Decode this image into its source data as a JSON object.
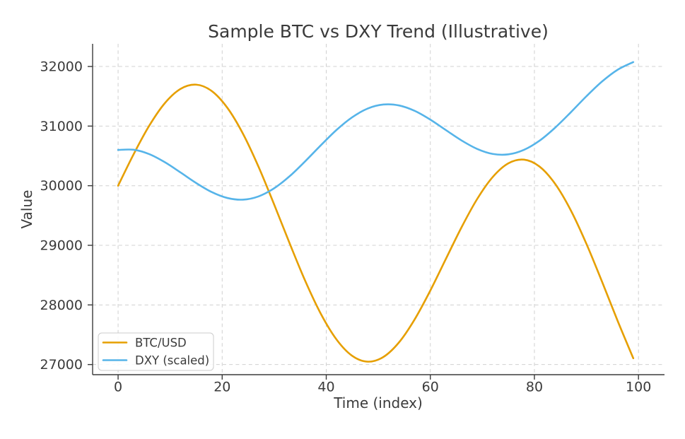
{
  "figure": {
    "background": "#ffffff"
  },
  "style": {
    "axis_color": "#3b3b3b",
    "text_color": "#3b3b3b",
    "grid_color": "#d0d0d0"
  },
  "chart_data": {
    "type": "line",
    "title": "Sample BTC vs DXY Trend (Illustrative)",
    "xlabel": "Time (index)",
    "ylabel": "Value",
    "x_ticks": [
      0,
      20,
      40,
      60,
      80,
      100
    ],
    "y_ticks": [
      27000,
      28000,
      29000,
      30000,
      31000,
      32000
    ],
    "xlim": [
      -4.9,
      105.0
    ],
    "ylim": [
      26830,
      32380
    ],
    "grid": {
      "visible": true,
      "style": "dashed",
      "color": "#d0d0d0"
    },
    "legend": {
      "position": "lower-left",
      "entries": [
        "BTC/USD",
        "DXY (scaled)"
      ]
    },
    "x": [
      0,
      3,
      6,
      9,
      12,
      15,
      18,
      21,
      24,
      27,
      30,
      33,
      36,
      39,
      42,
      45,
      48,
      51,
      54,
      57,
      60,
      63,
      66,
      69,
      72,
      75,
      78,
      81,
      84,
      87,
      90,
      93,
      96,
      99
    ],
    "series": [
      {
        "name": "BTC/USD",
        "color": "#E69F00",
        "values": [
          30000,
          30531,
          31009,
          31387,
          31624,
          31695,
          31588,
          31306,
          30871,
          30315,
          29682,
          29025,
          28395,
          27844,
          27417,
          27145,
          27048,
          27128,
          27374,
          27759,
          28241,
          28774,
          29303,
          29777,
          30147,
          30376,
          30437,
          30320,
          30029,
          29586,
          29024,
          28389,
          27731,
          27105
        ]
      },
      {
        "name": "DXY (scaled)",
        "color": "#56B4E9",
        "values": [
          30600,
          30603,
          30529,
          30393,
          30222,
          30045,
          29893,
          29794,
          29766,
          29821,
          29958,
          30162,
          30414,
          30682,
          30938,
          31149,
          31296,
          31362,
          31346,
          31255,
          31108,
          30932,
          30759,
          30617,
          30533,
          30526,
          30602,
          30756,
          30975,
          31232,
          31501,
          31748,
          31946,
          32074
        ]
      }
    ]
  }
}
